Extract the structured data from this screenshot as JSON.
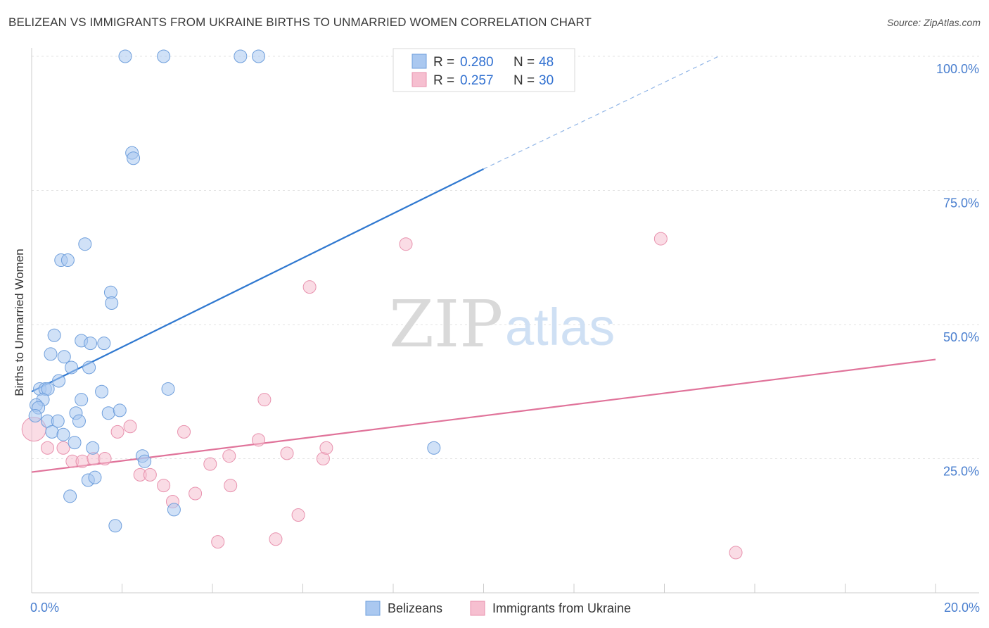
{
  "header": {
    "title": "BELIZEAN VS IMMIGRANTS FROM UKRAINE BIRTHS TO UNMARRIED WOMEN CORRELATION CHART",
    "source": "Source: ZipAtlas.com"
  },
  "watermark": {
    "zip": "ZIP",
    "atlas": "atlas"
  },
  "legend": {
    "r_label": "R =",
    "n_label": "N =",
    "rows": [
      {
        "r": "0.280",
        "n": "48"
      },
      {
        "r": "0.257",
        "n": "30"
      }
    ]
  },
  "chart_data": {
    "type": "scatter",
    "title": "BELIZEAN VS IMMIGRANTS FROM UKRAINE BIRTHS TO UNMARRIED WOMEN CORRELATION CHART",
    "xlabel": "",
    "ylabel": "Births to Unmarried Women",
    "xlim": [
      0,
      20
    ],
    "ylim": [
      0,
      100
    ],
    "x_ticks": [
      0,
      2,
      4,
      6,
      8,
      10,
      12,
      14,
      16,
      18,
      20
    ],
    "x_tick_labels": [
      {
        "value": 0,
        "label": "0.0%"
      },
      {
        "value": 20,
        "label": "20.0%"
      }
    ],
    "y_ticks": [
      {
        "value": 25,
        "label": "25.0%"
      },
      {
        "value": 50,
        "label": "50.0%"
      },
      {
        "value": 75,
        "label": "75.0%"
      },
      {
        "value": 100,
        "label": "100.0%"
      }
    ],
    "grid": true,
    "legend_position": "top-center",
    "colors": {
      "belizeans_fill": "#aac8f0",
      "belizeans_stroke": "#6f9fdc",
      "belizeans_line": "#2f78d0",
      "ukraine_fill": "#f6bfd0",
      "ukraine_stroke": "#e892ae",
      "ukraine_line": "#e0739a",
      "axis_label": "#4a7fcf"
    },
    "series": [
      {
        "name": "Belizeans",
        "r": 0.28,
        "n": 48,
        "trend": {
          "x0": 0,
          "y0": 37.5,
          "x_solid_end": 10,
          "y_solid_end": 79,
          "x_dash_end": 15.2,
          "y_dash_end": 100
        },
        "points": [
          {
            "x": 2.07,
            "y": 100
          },
          {
            "x": 2.92,
            "y": 100
          },
          {
            "x": 4.62,
            "y": 100
          },
          {
            "x": 5.02,
            "y": 100
          },
          {
            "x": 2.22,
            "y": 82
          },
          {
            "x": 2.25,
            "y": 81
          },
          {
            "x": 1.18,
            "y": 65
          },
          {
            "x": 0.65,
            "y": 62
          },
          {
            "x": 0.8,
            "y": 62
          },
          {
            "x": 1.75,
            "y": 56
          },
          {
            "x": 1.77,
            "y": 54
          },
          {
            "x": 0.5,
            "y": 48
          },
          {
            "x": 1.1,
            "y": 47
          },
          {
            "x": 1.3,
            "y": 46.5
          },
          {
            "x": 1.6,
            "y": 46.5
          },
          {
            "x": 0.42,
            "y": 44.5
          },
          {
            "x": 0.72,
            "y": 44
          },
          {
            "x": 0.88,
            "y": 42
          },
          {
            "x": 1.27,
            "y": 42
          },
          {
            "x": 0.6,
            "y": 39.5
          },
          {
            "x": 0.18,
            "y": 38
          },
          {
            "x": 0.3,
            "y": 38
          },
          {
            "x": 0.36,
            "y": 38
          },
          {
            "x": 3.02,
            "y": 38
          },
          {
            "x": 1.55,
            "y": 37.5
          },
          {
            "x": 0.25,
            "y": 36
          },
          {
            "x": 1.1,
            "y": 36
          },
          {
            "x": 0.1,
            "y": 35
          },
          {
            "x": 0.15,
            "y": 34.5
          },
          {
            "x": 0.98,
            "y": 33.5
          },
          {
            "x": 1.7,
            "y": 33.5
          },
          {
            "x": 1.95,
            "y": 34
          },
          {
            "x": 0.08,
            "y": 33
          },
          {
            "x": 0.35,
            "y": 32
          },
          {
            "x": 0.58,
            "y": 32
          },
          {
            "x": 1.05,
            "y": 32
          },
          {
            "x": 0.45,
            "y": 30
          },
          {
            "x": 0.7,
            "y": 29.5
          },
          {
            "x": 0.95,
            "y": 28
          },
          {
            "x": 1.35,
            "y": 27
          },
          {
            "x": 8.9,
            "y": 27
          },
          {
            "x": 2.45,
            "y": 25.5
          },
          {
            "x": 2.5,
            "y": 24.5
          },
          {
            "x": 1.25,
            "y": 21
          },
          {
            "x": 1.4,
            "y": 21.5
          },
          {
            "x": 0.85,
            "y": 18
          },
          {
            "x": 3.15,
            "y": 15.5
          },
          {
            "x": 1.85,
            "y": 12.5
          }
        ]
      },
      {
        "name": "Immigrants from Ukraine",
        "r": 0.257,
        "n": 30,
        "trend": {
          "x0": 0,
          "y0": 22.5,
          "x1": 20,
          "y1": 43.5
        },
        "points": [
          {
            "x": 0.05,
            "y": 30.5,
            "size": "large"
          },
          {
            "x": 0.35,
            "y": 27
          },
          {
            "x": 0.7,
            "y": 27
          },
          {
            "x": 0.9,
            "y": 24.5
          },
          {
            "x": 1.12,
            "y": 24.5
          },
          {
            "x": 1.37,
            "y": 25
          },
          {
            "x": 1.62,
            "y": 25
          },
          {
            "x": 1.9,
            "y": 30
          },
          {
            "x": 2.18,
            "y": 31
          },
          {
            "x": 2.4,
            "y": 22
          },
          {
            "x": 2.62,
            "y": 22
          },
          {
            "x": 2.92,
            "y": 20
          },
          {
            "x": 3.12,
            "y": 17
          },
          {
            "x": 3.37,
            "y": 30
          },
          {
            "x": 3.62,
            "y": 18.5
          },
          {
            "x": 3.95,
            "y": 24
          },
          {
            "x": 4.12,
            "y": 9.5
          },
          {
            "x": 4.37,
            "y": 25.5
          },
          {
            "x": 4.4,
            "y": 20
          },
          {
            "x": 5.02,
            "y": 28.5
          },
          {
            "x": 5.15,
            "y": 36
          },
          {
            "x": 5.4,
            "y": 10
          },
          {
            "x": 5.65,
            "y": 26
          },
          {
            "x": 5.9,
            "y": 14.5
          },
          {
            "x": 6.15,
            "y": 57
          },
          {
            "x": 6.45,
            "y": 25
          },
          {
            "x": 6.52,
            "y": 27
          },
          {
            "x": 8.28,
            "y": 65
          },
          {
            "x": 13.92,
            "y": 66
          },
          {
            "x": 15.58,
            "y": 7.5
          }
        ]
      }
    ]
  }
}
